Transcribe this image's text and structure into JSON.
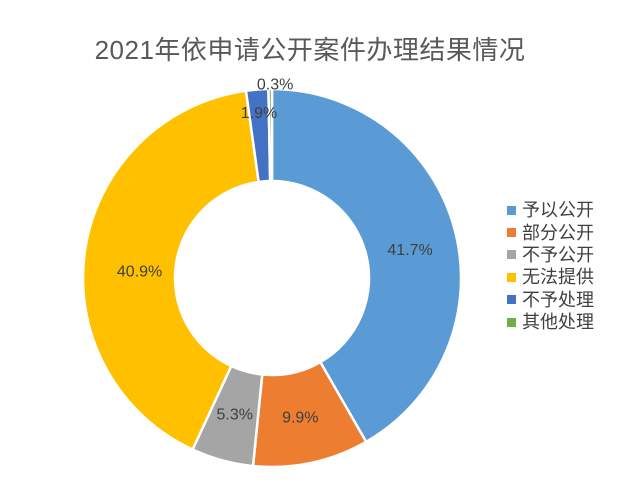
{
  "chart_data": {
    "type": "pie",
    "subtype": "donut",
    "title": "2021年依申请公开案件办理结果情况",
    "labels": [
      "予以公开",
      "部分公开",
      "不予公开",
      "无法提供",
      "不予处理",
      "其他处理"
    ],
    "values": [
      41.7,
      9.9,
      5.3,
      40.9,
      1.9,
      0.3
    ],
    "data_labels": [
      "41.7%",
      "9.9%",
      "5.3%",
      "40.9%",
      "1.9%",
      "0.3%"
    ],
    "colors": [
      "#5B9BD5",
      "#ED7D31",
      "#A5A5A5",
      "#FFC000",
      "#4472C4",
      "#70AD47"
    ],
    "legend_position": "right",
    "start_angle_deg": 0,
    "direction": "clockwise",
    "hole_radius_ratio": 0.51,
    "background_color": "#ffffff",
    "label_color": "#404040",
    "title_color": "#595959"
  }
}
